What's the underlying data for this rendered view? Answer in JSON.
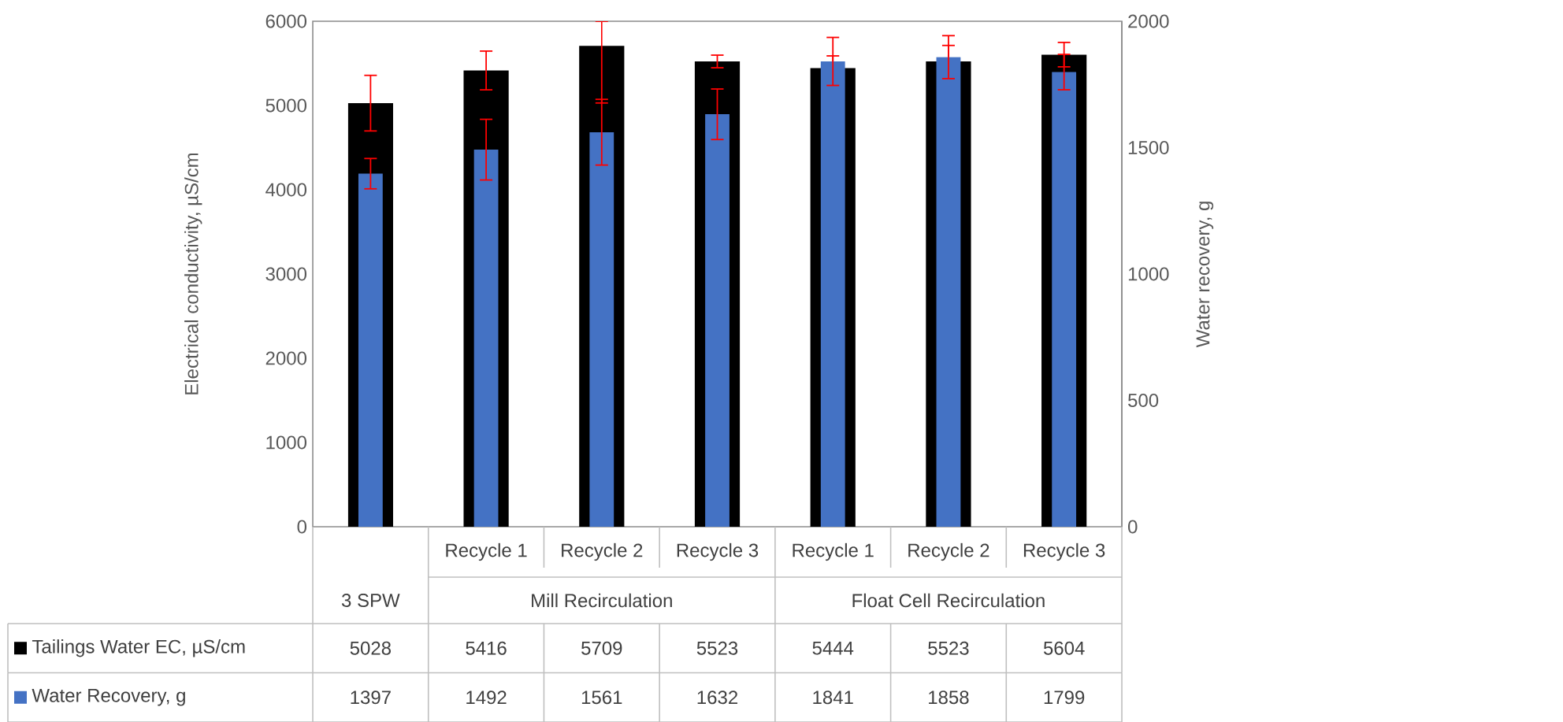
{
  "chart_data": {
    "type": "bar",
    "categories": [
      null,
      "Recycle 1",
      "Recycle 2",
      "Recycle 3",
      "Recycle 1",
      "Recycle 2",
      "Recycle 3"
    ],
    "annotations": [
      "3 SPW",
      "Mill Recirculation",
      "Float Cell Recirculation"
    ],
    "ylabel": "Electrical conductivity, µS/cm",
    "y2label": "Water recovery, g",
    "ylim": [
      0,
      6000
    ],
    "yticks": [
      0,
      1000,
      2000,
      3000,
      4000,
      5000,
      6000
    ],
    "y2lim": [
      0,
      2000
    ],
    "y2ticks": [
      0,
      500,
      1000,
      1500,
      2000
    ],
    "data_labels": true,
    "legend": "bottom",
    "grid": false,
    "series": [
      {
        "name": "Tailings Water EC, µS/cm",
        "color": "#000000",
        "values": [
          5028,
          5416,
          5709,
          5523,
          5444,
          5523,
          5604
        ],
        "errors": [
          330,
          230,
          [
            5030,
            6000
          ],
          75,
          145,
          190,
          145
        ]
      },
      {
        "name": "Water Recovery, g",
        "color": "#4472c4",
        "axis": "y2",
        "values": [
          1397,
          1492,
          1561,
          1632,
          1841,
          1858,
          1799
        ],
        "errors": [
          60,
          120,
          130,
          100,
          95,
          85,
          70
        ]
      }
    ]
  }
}
